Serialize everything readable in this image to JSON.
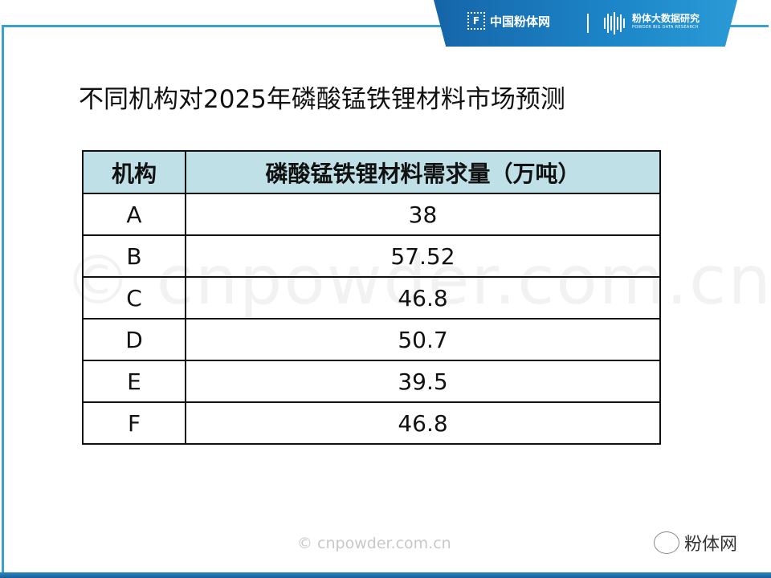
{
  "header": {
    "logo_text": "中国粉体网",
    "research_cn": "粉体大数据研究",
    "research_en": "POWDER BIG DATA RESEARCH",
    "brand_color": "#1c86c8"
  },
  "title": "不同机构对2025年磷酸锰铁锂材料市场预测",
  "table": {
    "headers": [
      "机构",
      "磷酸锰铁锂材料需求量（万吨）"
    ],
    "header_bg": "#bfe0e6",
    "rows": [
      [
        "A",
        "38"
      ],
      [
        "B",
        "57.52"
      ],
      [
        "C",
        "46.8"
      ],
      [
        "D",
        "50.7"
      ],
      [
        "E",
        "39.5"
      ],
      [
        "F",
        "46.8"
      ]
    ]
  },
  "watermark": "© cnpowder.com.cn",
  "footer": {
    "watermark": "© cnpowder.com.cn",
    "wechat_label": "粉体网"
  }
}
